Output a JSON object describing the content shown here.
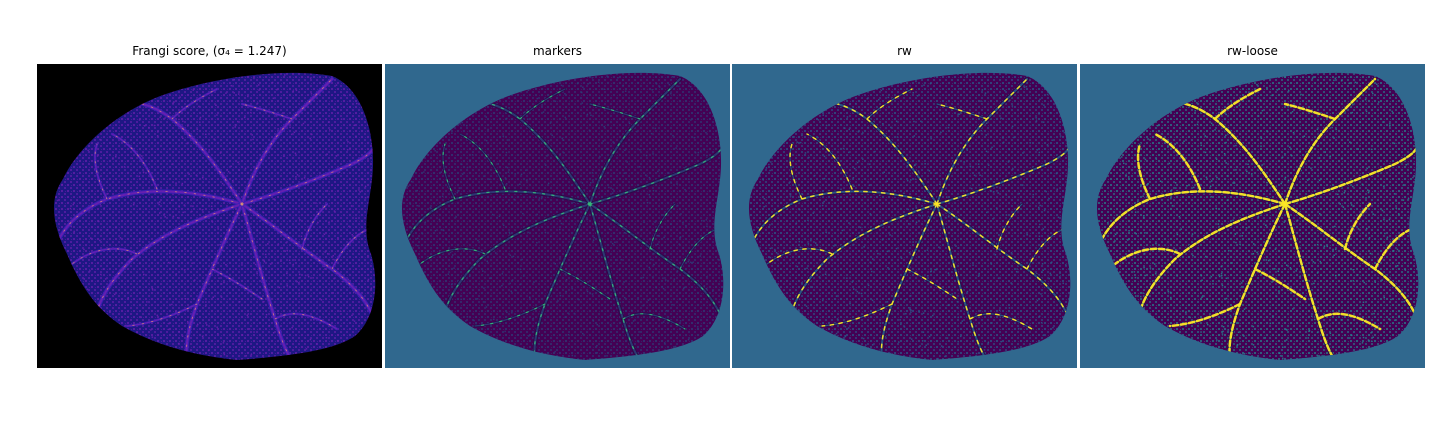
{
  "panels": [
    {
      "title": "Frangi score, (σ₄ = 1.247)",
      "image": "frangi-vesselness-map",
      "colors": {
        "background": "#000000",
        "tissue": "#1e1784",
        "vessel": "#6a1fb0",
        "highlight": "#f6a86b"
      }
    },
    {
      "title": "markers",
      "image": "marker-label-map",
      "colors": {
        "background": "#30688e",
        "tissue": "#440154",
        "vessel": "#2d3d78",
        "highlight": "#35b779"
      }
    },
    {
      "title": "rw",
      "image": "random-walker-segmentation",
      "colors": {
        "background": "#30688e",
        "tissue": "#440154",
        "vessel": "#2a5a8a",
        "highlight": "#fde725"
      }
    },
    {
      "title": "rw-loose",
      "image": "random-walker-loose-segmentation",
      "colors": {
        "background": "#30688e",
        "tissue": "#440154",
        "vessel": "#26828e",
        "highlight": "#fde725"
      }
    }
  ]
}
